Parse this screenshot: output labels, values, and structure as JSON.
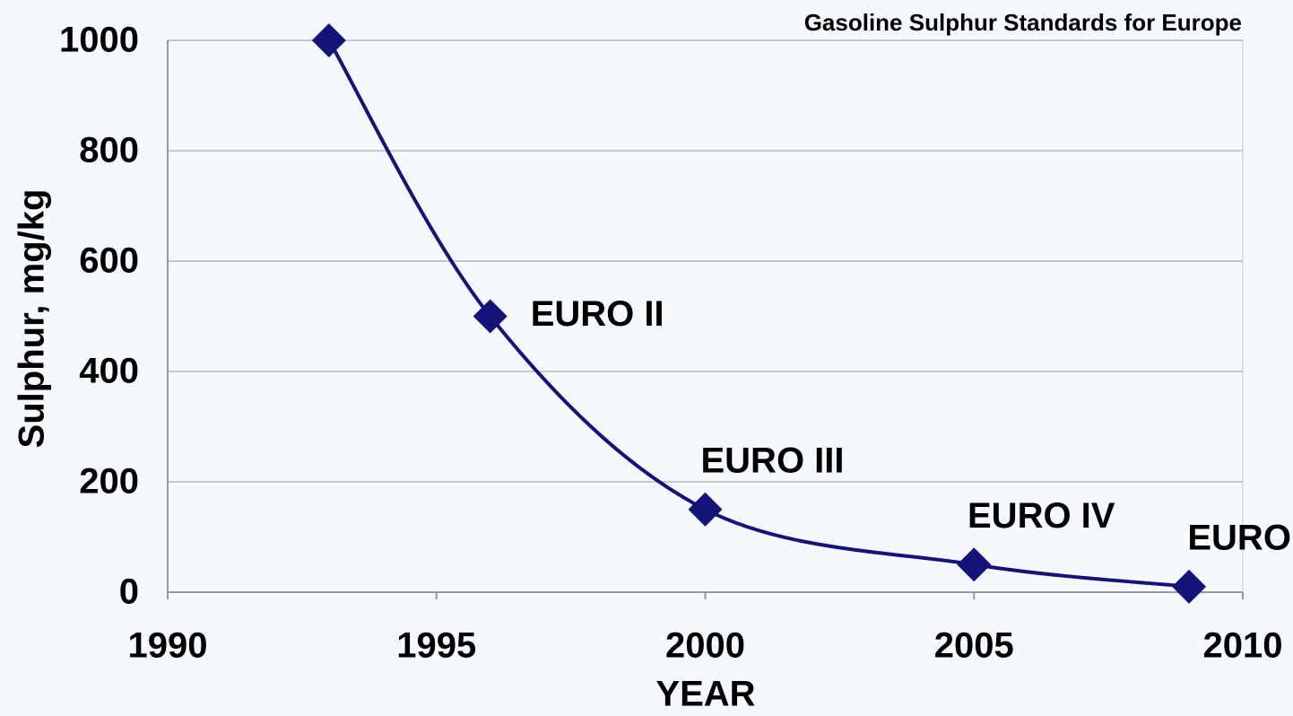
{
  "chart_data": {
    "type": "line",
    "title": "Gasoline Sulphur Standards for Europe",
    "xlabel": "YEAR",
    "ylabel": "Sulphur, mg/kg",
    "x": [
      1993,
      1996,
      2000,
      2005,
      2009
    ],
    "series": [
      {
        "color": "#141478",
        "values": [
          1000,
          500,
          150,
          50,
          10
        ]
      }
    ],
    "point_labels": [
      null,
      "EURO II",
      "EURO III",
      "EURO IV",
      "EURO V"
    ],
    "xlim": [
      1990,
      2010
    ],
    "xticks": [
      1990,
      1995,
      2000,
      2005,
      2010
    ],
    "ylim": [
      0,
      1000
    ],
    "yticks": [
      0,
      200,
      400,
      600,
      800,
      1000
    ],
    "grid": true,
    "smooth": true
  }
}
